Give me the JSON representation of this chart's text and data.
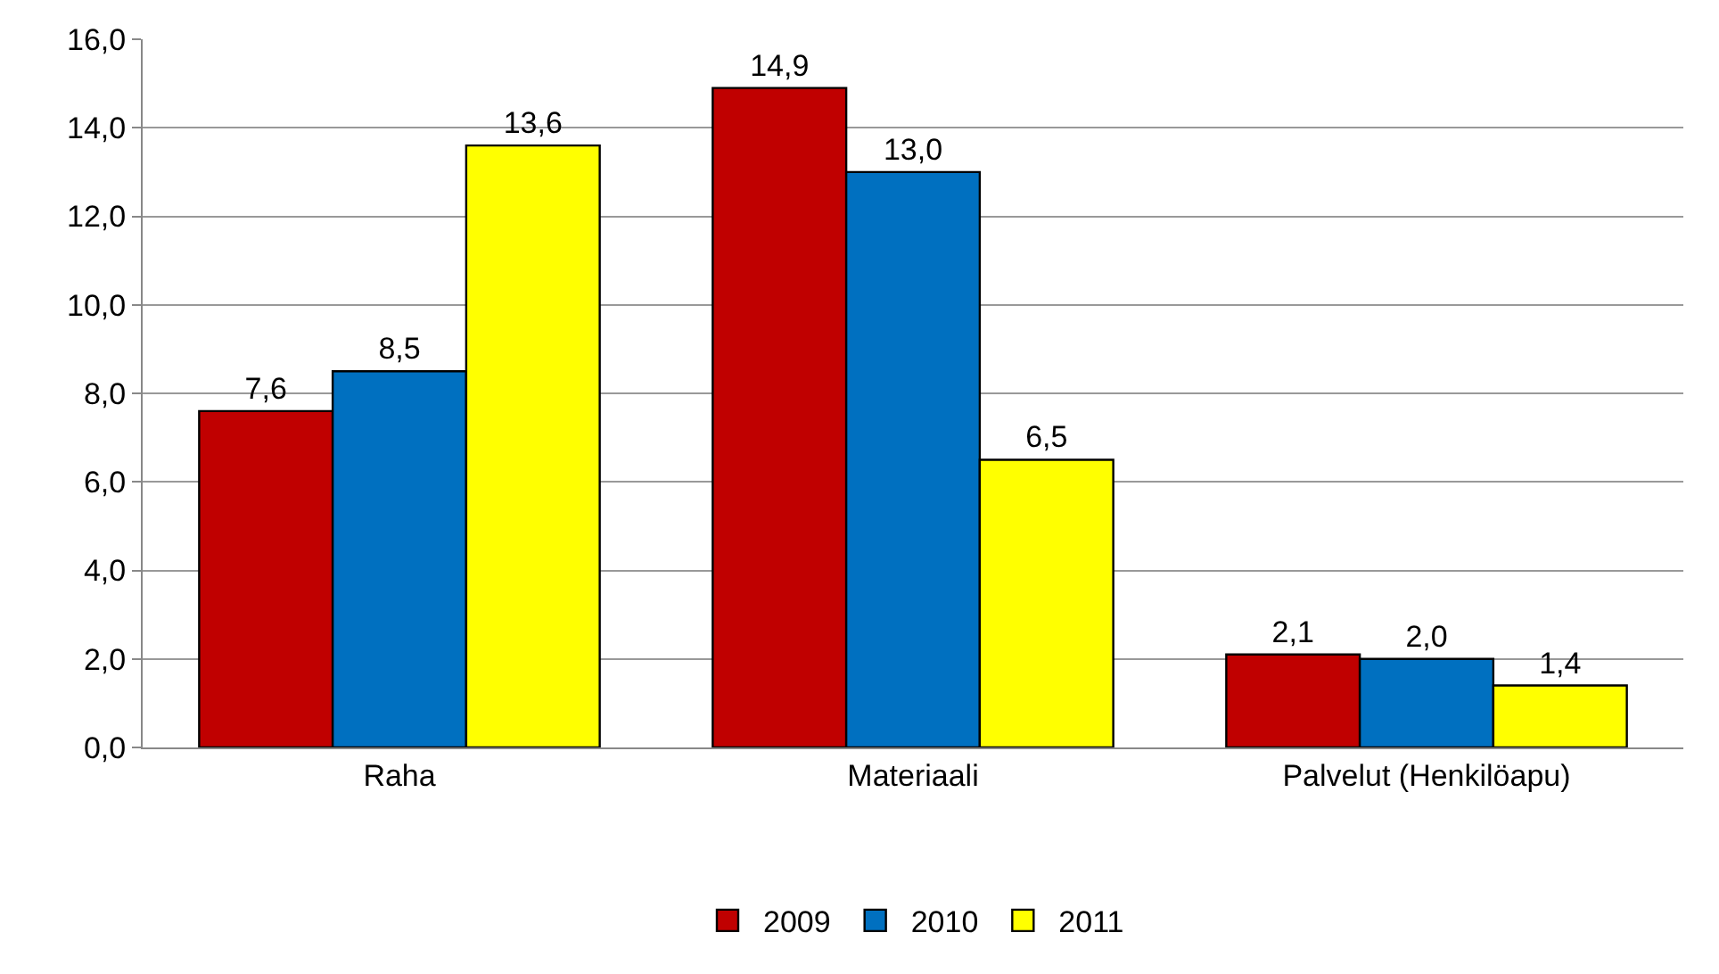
{
  "chart_data": {
    "type": "bar",
    "categories": [
      "Raha",
      "Materiaali",
      "Palvelut (Henkilöapu)"
    ],
    "series": [
      {
        "name": "2009",
        "color": "#c00000",
        "values": [
          7.6,
          14.9,
          2.1
        ]
      },
      {
        "name": "2010",
        "color": "#0070c0",
        "values": [
          8.5,
          13.0,
          2.0
        ]
      },
      {
        "name": "2011",
        "color": "#ffff00",
        "values": [
          13.6,
          6.5,
          1.4
        ]
      }
    ],
    "value_labels": [
      [
        "7,6",
        "14,9",
        "2,1"
      ],
      [
        "8,5",
        "13,0",
        "2,0"
      ],
      [
        "13,6",
        "6,5",
        "1,4"
      ]
    ],
    "ylim": [
      0,
      16
    ],
    "yticks": [
      {
        "value": 0,
        "label": "0,0"
      },
      {
        "value": 2,
        "label": "2,0"
      },
      {
        "value": 4,
        "label": "4,0"
      },
      {
        "value": 6,
        "label": "6,0"
      },
      {
        "value": 8,
        "label": "8,0"
      },
      {
        "value": 10,
        "label": "10,0"
      },
      {
        "value": 12,
        "label": "12,0"
      },
      {
        "value": 14,
        "label": "14,0"
      },
      {
        "value": 16,
        "label": "16,0"
      }
    ],
    "grid": "y",
    "legend": "bottom"
  }
}
